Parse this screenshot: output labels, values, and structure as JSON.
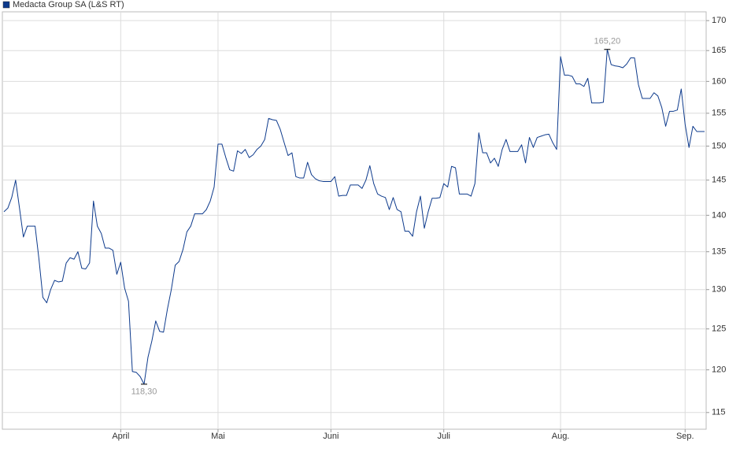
{
  "chart_data": {
    "type": "line",
    "categories": [
      null,
      null,
      null,
      null,
      null,
      null,
      null,
      null,
      null,
      null,
      null,
      null,
      null,
      null,
      null,
      null,
      null,
      null,
      null,
      null,
      null,
      null,
      null,
      null,
      null,
      null,
      null,
      null,
      null,
      null,
      "April",
      null,
      null,
      null,
      null,
      null,
      null,
      null,
      null,
      null,
      null,
      null,
      null,
      null,
      null,
      null,
      null,
      null,
      null,
      null,
      null,
      null,
      null,
      null,
      null,
      "Mai",
      null,
      null,
      null,
      null,
      null,
      null,
      null,
      null,
      null,
      null,
      null,
      null,
      null,
      null,
      null,
      null,
      null,
      null,
      null,
      null,
      null,
      null,
      null,
      null,
      null,
      null,
      null,
      null,
      "Juni",
      null,
      null,
      null,
      null,
      null,
      null,
      null,
      null,
      null,
      null,
      null,
      null,
      null,
      null,
      null,
      null,
      null,
      null,
      null,
      null,
      null,
      null,
      null,
      null,
      null,
      null,
      null,
      null,
      "Juli",
      null,
      null,
      null,
      null,
      null,
      null,
      null,
      null,
      null,
      null,
      null,
      null,
      null,
      null,
      null,
      null,
      null,
      null,
      null,
      null,
      null,
      null,
      null,
      null,
      null,
      null,
      null,
      null,
      null,
      "Aug.",
      null,
      null,
      null,
      null,
      null,
      null,
      null,
      null,
      null,
      null,
      null,
      null,
      null,
      null,
      null,
      null,
      null,
      null,
      null,
      null,
      null,
      null,
      null,
      null,
      null,
      null,
      null,
      null,
      null,
      null,
      null,
      "Sep.",
      null,
      null,
      null,
      null,
      null
    ],
    "series": [
      {
        "name": "Medacta Group SA (L&S RT)",
        "color": "#0d3a8c",
        "values": [
          140.5,
          141,
          142.5,
          145,
          141,
          137,
          138.5,
          138.5,
          138.5,
          134,
          129,
          128.3,
          130,
          131.2,
          131,
          131.1,
          133.5,
          134.2,
          134,
          135,
          132.8,
          132.7,
          133.5,
          142,
          138.5,
          137.5,
          135.5,
          135.5,
          135.2,
          132,
          133.6,
          130.2,
          128.5,
          119.8,
          119.7,
          119.2,
          118.3,
          121.5,
          123.5,
          126,
          124.7,
          124.6,
          127.5,
          130,
          133.2,
          133.7,
          135.3,
          137.7,
          138.5,
          140.2,
          140.2,
          140.2,
          140.8,
          142,
          144,
          150.3,
          150.3,
          148.3,
          146.5,
          146.3,
          149.3,
          148.9,
          149.5,
          148.3,
          148.7,
          149.5,
          150,
          151,
          154.2,
          154,
          153.9,
          152.5,
          150.5,
          148.6,
          149,
          145.5,
          145.3,
          145.3,
          147.6,
          145.8,
          145.2,
          144.9,
          144.8,
          144.8,
          144.8,
          145.5,
          142.7,
          142.8,
          142.8,
          144.3,
          144.3,
          144.3,
          143.8,
          145,
          147.1,
          144.5,
          143,
          142.7,
          142.5,
          140.8,
          142.5,
          140.8,
          140.5,
          137.8,
          137.8,
          137.1,
          140.5,
          142.7,
          138.2,
          140.5,
          142.4,
          142.4,
          142.5,
          144.5,
          144,
          147,
          146.8,
          143,
          143,
          143,
          142.7,
          144.5,
          152,
          149,
          149,
          147.5,
          148.2,
          147,
          149.5,
          151,
          149.2,
          149.2,
          149.2,
          150.2,
          147.5,
          151.3,
          149.8,
          151.3,
          151.5,
          151.7,
          151.8,
          150.5,
          149.5,
          164,
          161,
          161,
          160.8,
          159.6,
          159.6,
          159.2,
          160.5,
          156.6,
          156.6,
          156.6,
          156.7,
          165.2,
          162.7,
          162.5,
          162.4,
          162.2,
          162.8,
          163.8,
          163.8,
          159.5,
          157.3,
          157.3,
          157.3,
          158.2,
          157.7,
          155.9,
          153,
          155.3,
          155.3,
          155.5,
          158.8,
          153.3,
          149.8,
          153,
          152.2,
          152.2,
          152.2
        ]
      }
    ],
    "annotations": [
      {
        "label": "118,30",
        "value": 118.3
      },
      {
        "label": "165,20",
        "value": 165.2
      }
    ],
    "ylim": [
      113.1,
      171.5
    ],
    "yticks": [
      115,
      120,
      125,
      130,
      135,
      140,
      145,
      150,
      155,
      160,
      165,
      170
    ],
    "log_scale": true,
    "grid": true,
    "legend": "top-left"
  }
}
